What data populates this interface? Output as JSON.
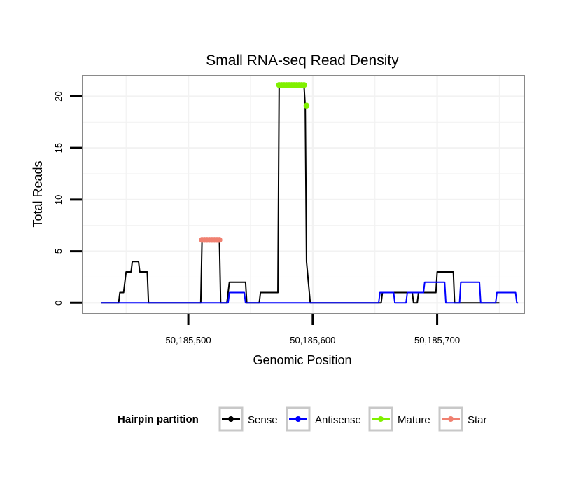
{
  "chart_data": {
    "type": "line",
    "title": "Small RNA-seq Read Density",
    "xlabel": "Genomic Position",
    "ylabel": "Total Reads",
    "xlim": [
      50185415,
      50185770
    ],
    "ylim": [
      -1,
      22
    ],
    "x_ticks": [
      50185500,
      50185600,
      50185700
    ],
    "x_tick_labels": [
      "50,185,500",
      "50,185,600",
      "50,185,700"
    ],
    "y_ticks": [
      0,
      5,
      10,
      15,
      20
    ],
    "y_tick_labels": [
      "0",
      "5",
      "10",
      "15",
      "20"
    ],
    "grid": true,
    "legend_title": "Hairpin partition",
    "legend_position": "bottom",
    "series": [
      {
        "name": "Sense",
        "color": "#000000",
        "style": "line",
        "points": [
          [
            50185430,
            0
          ],
          [
            50185444,
            0
          ],
          [
            50185445,
            1
          ],
          [
            50185448,
            1
          ],
          [
            50185449,
            2
          ],
          [
            50185450,
            3
          ],
          [
            50185454,
            3
          ],
          [
            50185455,
            4
          ],
          [
            50185460,
            4
          ],
          [
            50185461,
            3
          ],
          [
            50185467,
            3
          ],
          [
            50185468,
            0
          ],
          [
            50185510,
            0
          ],
          [
            50185511,
            6
          ],
          [
            50185525,
            6
          ],
          [
            50185526,
            0
          ],
          [
            50185531,
            0
          ],
          [
            50185533,
            2
          ],
          [
            50185546,
            2
          ],
          [
            50185547,
            0
          ],
          [
            50185557,
            0
          ],
          [
            50185558,
            1
          ],
          [
            50185572,
            1
          ],
          [
            50185573,
            21
          ],
          [
            50185593,
            21
          ],
          [
            50185594,
            19
          ],
          [
            50185595,
            4
          ],
          [
            50185598,
            0
          ],
          [
            50185655,
            0
          ],
          [
            50185656,
            1
          ],
          [
            50185680,
            1
          ],
          [
            50185681,
            0
          ],
          [
            50185684,
            0
          ],
          [
            50185685,
            1
          ],
          [
            50185699,
            1
          ],
          [
            50185700,
            3
          ],
          [
            50185713,
            3
          ],
          [
            50185714,
            0
          ],
          [
            50185750,
            0
          ]
        ]
      },
      {
        "name": "Antisense",
        "color": "#0000ff",
        "style": "line",
        "points": [
          [
            50185430,
            0
          ],
          [
            50185532,
            0
          ],
          [
            50185533,
            1
          ],
          [
            50185545,
            1
          ],
          [
            50185546,
            0
          ],
          [
            50185653,
            0
          ],
          [
            50185654,
            1
          ],
          [
            50185665,
            1
          ],
          [
            50185666,
            0
          ],
          [
            50185675,
            0
          ],
          [
            50185676,
            1
          ],
          [
            50185689,
            1
          ],
          [
            50185690,
            2
          ],
          [
            50185706,
            2
          ],
          [
            50185707,
            0
          ],
          [
            50185718,
            0
          ],
          [
            50185719,
            2
          ],
          [
            50185734,
            2
          ],
          [
            50185735,
            0
          ],
          [
            50185747,
            0
          ],
          [
            50185748,
            1
          ],
          [
            50185763,
            1
          ],
          [
            50185764,
            0
          ],
          [
            50185765,
            0
          ]
        ]
      },
      {
        "name": "Mature",
        "color": "#80f000",
        "style": "points",
        "points": [
          [
            50185573,
            21.1
          ],
          [
            50185575,
            21.1
          ],
          [
            50185577,
            21.1
          ],
          [
            50185579,
            21.1
          ],
          [
            50185581,
            21.1
          ],
          [
            50185583,
            21.1
          ],
          [
            50185585,
            21.1
          ],
          [
            50185587,
            21.1
          ],
          [
            50185589,
            21.1
          ],
          [
            50185591,
            21.1
          ],
          [
            50185593,
            21.1
          ],
          [
            50185595,
            19.1
          ]
        ]
      },
      {
        "name": "Star",
        "color": "#f08070",
        "style": "points",
        "points": [
          [
            50185511,
            6.1
          ],
          [
            50185513,
            6.1
          ],
          [
            50185515,
            6.1
          ],
          [
            50185517,
            6.1
          ],
          [
            50185519,
            6.1
          ],
          [
            50185521,
            6.1
          ],
          [
            50185523,
            6.1
          ],
          [
            50185525,
            6.1
          ]
        ]
      }
    ]
  }
}
